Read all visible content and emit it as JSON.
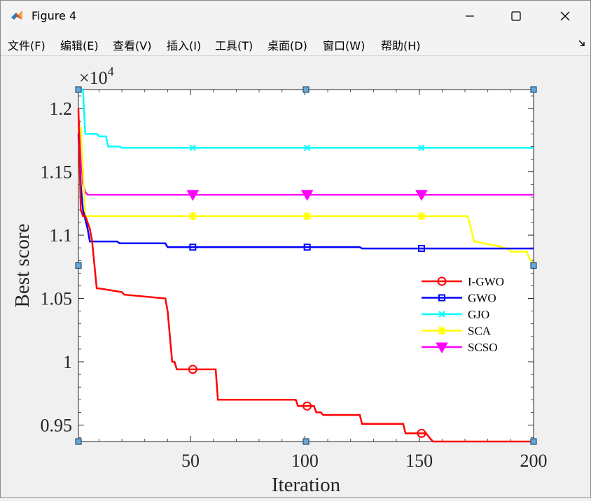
{
  "window": {
    "title": "Figure 4"
  },
  "menu": [
    "文件(F)",
    "编辑(E)",
    "查看(V)",
    "插入(I)",
    "工具(T)",
    "桌面(D)",
    "窗口(W)",
    "帮助(H)"
  ],
  "icons": {
    "app": "matlab-icon",
    "minimize": "minimize-icon",
    "maximize": "maximize-icon",
    "close": "close-icon",
    "dock": "dock-arrow-icon"
  },
  "chart_data": {
    "type": "line",
    "xlabel": "Iteration",
    "ylabel": "Best score",
    "exponent_label": "×10",
    "exponent_power": "4",
    "xlim": [
      1,
      200
    ],
    "ylim": [
      9370,
      12150
    ],
    "xticks": [
      50,
      100,
      150,
      200
    ],
    "xtick_labels": [
      "50",
      "100",
      "150",
      "200"
    ],
    "yticks": [
      9500,
      10000,
      10500,
      11000,
      11500,
      12000
    ],
    "ytick_labels": [
      "0.95",
      "1",
      "1.05",
      "1.1",
      "1.15",
      "1.2"
    ],
    "legend_position": "right-middle",
    "grid": false,
    "series": [
      {
        "name": "I-GWO",
        "color": "#ff0000",
        "marker": "circle",
        "x": [
          1,
          2,
          3,
          4,
          5,
          6,
          7,
          9,
          10,
          20,
          21,
          39,
          40,
          42,
          43,
          44,
          61,
          62,
          96,
          97,
          104,
          105,
          107,
          108,
          124,
          125,
          143,
          144,
          153,
          155,
          156,
          200
        ],
        "y": [
          12000,
          11200,
          11150,
          11150,
          11100,
          11050,
          10950,
          10580,
          10580,
          10550,
          10530,
          10500,
          10400,
          10000,
          10000,
          9940,
          9940,
          9700,
          9700,
          9650,
          9650,
          9600,
          9600,
          9580,
          9580,
          9510,
          9510,
          9435,
          9435,
          9390,
          9370,
          9370
        ]
      },
      {
        "name": "GWO",
        "color": "#0000ff",
        "marker": "square",
        "x": [
          1,
          2,
          3,
          5,
          6,
          18,
          19,
          39,
          40,
          124,
          125,
          200
        ],
        "y": [
          11800,
          11400,
          11200,
          11050,
          10950,
          10950,
          10935,
          10935,
          10905,
          10905,
          10895,
          10895
        ]
      },
      {
        "name": "GJO",
        "color": "#00ffff",
        "marker": "x",
        "x": [
          1,
          3,
          4,
          9,
          10,
          13,
          14,
          19,
          20,
          200
        ],
        "y": [
          12150,
          12150,
          11800,
          11800,
          11780,
          11780,
          11700,
          11700,
          11690,
          11690
        ]
      },
      {
        "name": "SCA",
        "color": "#ffff00",
        "marker": "star",
        "x": [
          1,
          2,
          3,
          4,
          171,
          172,
          174,
          175,
          182,
          183,
          189,
          190,
          197,
          198,
          200
        ],
        "y": [
          11850,
          11850,
          11500,
          11150,
          11150,
          11100,
          10950,
          10950,
          10920,
          10920,
          10890,
          10870,
          10870,
          10820,
          10770
        ]
      },
      {
        "name": "SCSO",
        "color": "#ff00ff",
        "marker": "triangle-down",
        "x": [
          1,
          2,
          3,
          4,
          5,
          200
        ],
        "y": [
          11950,
          11650,
          11400,
          11340,
          11320,
          11320
        ]
      }
    ]
  }
}
